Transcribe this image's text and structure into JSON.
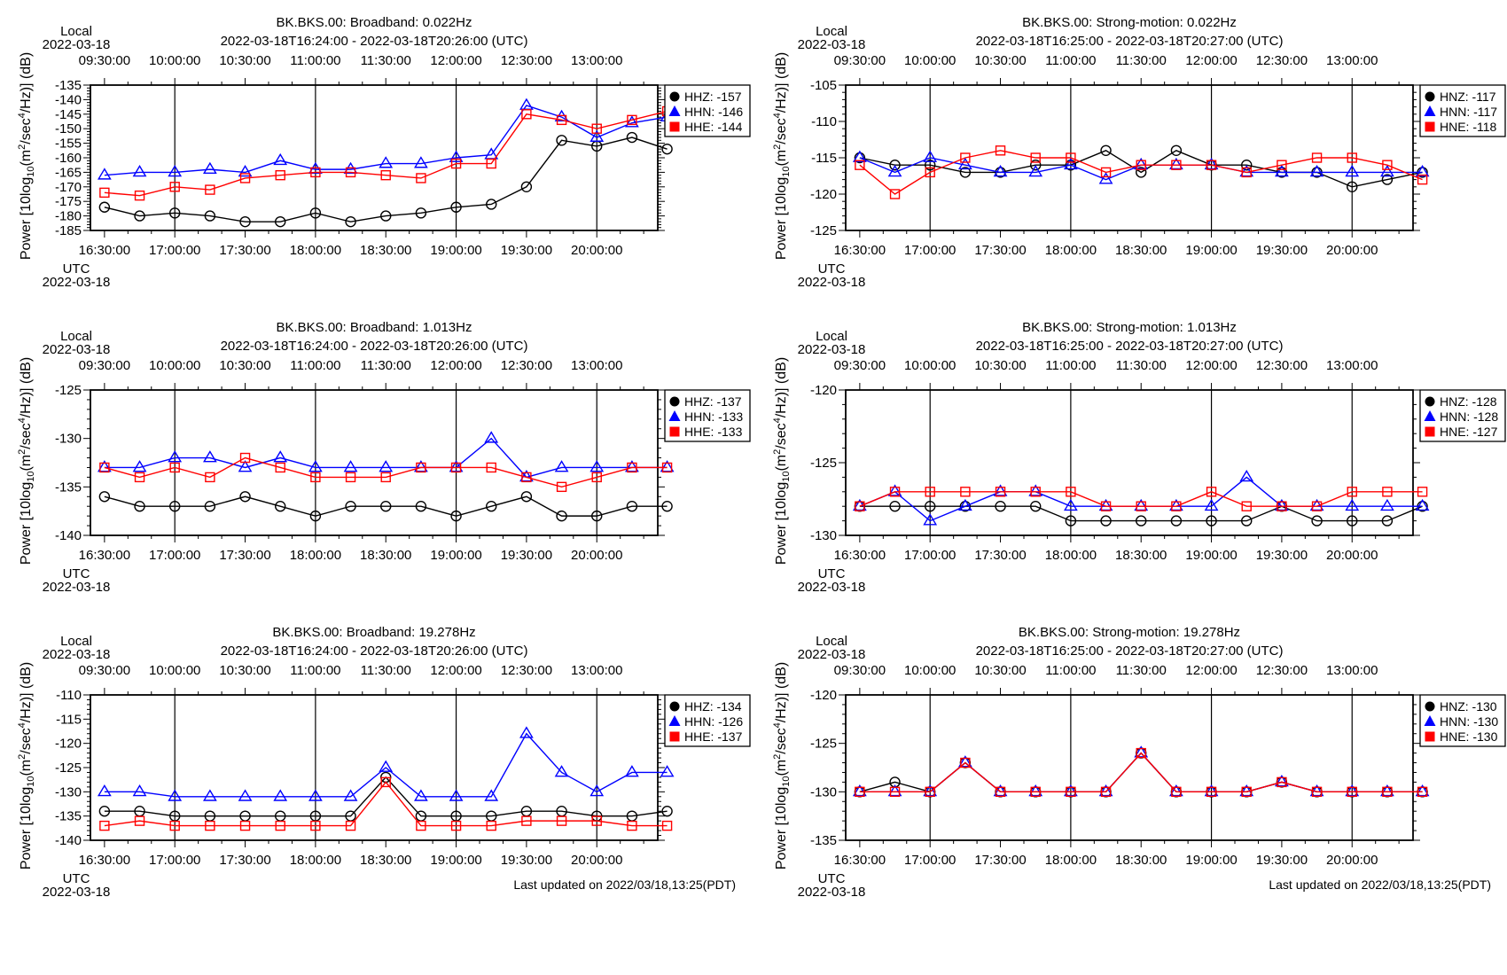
{
  "colors": {
    "z": "#000000",
    "n": "#0000ff",
    "e": "#ff0000"
  },
  "time_axis": {
    "local_label": "Local",
    "utc_label": "UTC",
    "date": "2022-03-18",
    "local_ticks": [
      "09:30:00",
      "10:00:00",
      "10:30:00",
      "11:00:00",
      "11:30:00",
      "12:00:00",
      "12:30:00",
      "13:00:00"
    ],
    "utc_ticks": [
      "16:30:00",
      "17:00:00",
      "17:30:00",
      "18:00:00",
      "18:30:00",
      "19:00:00",
      "19:30:00",
      "20:00:00"
    ]
  },
  "ylabel": {
    "prefix": "Power [10log",
    "sub10": "10",
    "mid": "(m",
    "sup2": "2",
    "mid2": "/sec",
    "sup4": "4",
    "suffix": "/Hz)] (dB)"
  },
  "footer": {
    "last_updated": "Last updated on 2022/03/18,13:25(PDT)"
  },
  "chart_data": [
    {
      "type": "line",
      "title": "BK.BKS.00: Broadband: 0.022Hz",
      "subtitle": "2022-03-18T16:24:00 - 2022-03-18T20:26:00 (UTC)",
      "x_time_utc": [
        "16:30",
        "16:45",
        "17:00",
        "17:15",
        "17:30",
        "17:45",
        "18:00",
        "18:15",
        "18:30",
        "18:45",
        "19:00",
        "19:15",
        "19:30",
        "19:45",
        "20:00",
        "20:15",
        "20:30"
      ],
      "ylim": [
        -185,
        -135
      ],
      "yticks": [
        -185,
        -180,
        -175,
        -170,
        -165,
        -160,
        -155,
        -150,
        -145,
        -140,
        -135
      ],
      "series": [
        {
          "name": "HHZ",
          "legend": "HHZ: -157",
          "marker": "circle",
          "values": [
            -177,
            -180,
            -179,
            -180,
            -182,
            -182,
            -179,
            -182,
            -180,
            -179,
            -177,
            -176,
            -170,
            -154,
            -156,
            -153,
            -157
          ]
        },
        {
          "name": "HHN",
          "legend": "HHN: -146",
          "marker": "triangle",
          "values": [
            -166,
            -165,
            -165,
            -164,
            -165,
            -161,
            -164,
            -164,
            -162,
            -162,
            -160,
            -159,
            -142,
            -146,
            -153,
            -148,
            -146
          ]
        },
        {
          "name": "HHE",
          "legend": "HHE: -144",
          "marker": "square",
          "values": [
            -172,
            -173,
            -170,
            -171,
            -167,
            -166,
            -165,
            -165,
            -166,
            -167,
            -162,
            -162,
            -145,
            -147,
            -150,
            -147,
            -144
          ]
        }
      ]
    },
    {
      "type": "line",
      "title": "BK.BKS.00: Strong-motion: 0.022Hz",
      "subtitle": "2022-03-18T16:25:00 - 2022-03-18T20:27:00 (UTC)",
      "x_time_utc": [
        "16:30",
        "16:45",
        "17:00",
        "17:15",
        "17:30",
        "17:45",
        "18:00",
        "18:15",
        "18:30",
        "18:45",
        "19:00",
        "19:15",
        "19:30",
        "19:45",
        "20:00",
        "20:15",
        "20:30"
      ],
      "ylim": [
        -125,
        -105
      ],
      "yticks": [
        -125,
        -120,
        -115,
        -110,
        -105
      ],
      "series": [
        {
          "name": "HNZ",
          "legend": "HNZ: -117",
          "marker": "circle",
          "values": [
            -115,
            -116,
            -116,
            -117,
            -117,
            -116,
            -116,
            -114,
            -117,
            -114,
            -116,
            -116,
            -117,
            -117,
            -119,
            -118,
            -117
          ]
        },
        {
          "name": "HNN",
          "legend": "HNN: -117",
          "marker": "triangle",
          "values": [
            -115,
            -117,
            -115,
            -116,
            -117,
            -117,
            -116,
            -118,
            -116,
            -116,
            -116,
            -117,
            -117,
            -117,
            -117,
            -117,
            -117
          ]
        },
        {
          "name": "HNE",
          "legend": "HNE: -118",
          "marker": "square",
          "values": [
            -116,
            -120,
            -117,
            -115,
            -114,
            -115,
            -115,
            -117,
            -116,
            -116,
            -116,
            -117,
            -116,
            -115,
            -115,
            -116,
            -118
          ]
        }
      ]
    },
    {
      "type": "line",
      "title": "BK.BKS.00: Broadband: 1.013Hz",
      "subtitle": "2022-03-18T16:24:00 - 2022-03-18T20:26:00 (UTC)",
      "x_time_utc": [
        "16:30",
        "16:45",
        "17:00",
        "17:15",
        "17:30",
        "17:45",
        "18:00",
        "18:15",
        "18:30",
        "18:45",
        "19:00",
        "19:15",
        "19:30",
        "19:45",
        "20:00",
        "20:15",
        "20:30"
      ],
      "ylim": [
        -140,
        -125
      ],
      "yticks": [
        -140,
        -135,
        -130,
        -125
      ],
      "series": [
        {
          "name": "HHZ",
          "legend": "HHZ: -137",
          "marker": "circle",
          "values": [
            -136,
            -137,
            -137,
            -137,
            -136,
            -137,
            -138,
            -137,
            -137,
            -137,
            -138,
            -137,
            -136,
            -138,
            -138,
            -137,
            -137
          ]
        },
        {
          "name": "HHN",
          "legend": "HHN: -133",
          "marker": "triangle",
          "values": [
            -133,
            -133,
            -132,
            -132,
            -133,
            -132,
            -133,
            -133,
            -133,
            -133,
            -133,
            -130,
            -134,
            -133,
            -133,
            -133,
            -133
          ]
        },
        {
          "name": "HHE",
          "legend": "HHE: -133",
          "marker": "square",
          "values": [
            -133,
            -134,
            -133,
            -134,
            -132,
            -133,
            -134,
            -134,
            -134,
            -133,
            -133,
            -133,
            -134,
            -135,
            -134,
            -133,
            -133
          ]
        }
      ]
    },
    {
      "type": "line",
      "title": "BK.BKS.00: Strong-motion: 1.013Hz",
      "subtitle": "2022-03-18T16:25:00 - 2022-03-18T20:27:00 (UTC)",
      "x_time_utc": [
        "16:30",
        "16:45",
        "17:00",
        "17:15",
        "17:30",
        "17:45",
        "18:00",
        "18:15",
        "18:30",
        "18:45",
        "19:00",
        "19:15",
        "19:30",
        "19:45",
        "20:00",
        "20:15",
        "20:30"
      ],
      "ylim": [
        -130,
        -120
      ],
      "yticks": [
        -130,
        -125,
        -120
      ],
      "series": [
        {
          "name": "HNZ",
          "legend": "HNZ: -128",
          "marker": "circle",
          "values": [
            -128,
            -128,
            -128,
            -128,
            -128,
            -128,
            -129,
            -129,
            -129,
            -129,
            -129,
            -129,
            -128,
            -129,
            -129,
            -129,
            -128
          ]
        },
        {
          "name": "HNN",
          "legend": "HNN: -128",
          "marker": "triangle",
          "values": [
            -128,
            -127,
            -129,
            -128,
            -127,
            -127,
            -128,
            -128,
            -128,
            -128,
            -128,
            -126,
            -128,
            -128,
            -128,
            -128,
            -128
          ]
        },
        {
          "name": "HNE",
          "legend": "HNE: -127",
          "marker": "square",
          "values": [
            -128,
            -127,
            -127,
            -127,
            -127,
            -127,
            -127,
            -128,
            -128,
            -128,
            -127,
            -128,
            -128,
            -128,
            -127,
            -127,
            -127
          ]
        }
      ]
    },
    {
      "type": "line",
      "title": "BK.BKS.00: Broadband: 19.278Hz",
      "subtitle": "2022-03-18T16:24:00 - 2022-03-18T20:26:00 (UTC)",
      "x_time_utc": [
        "16:30",
        "16:45",
        "17:00",
        "17:15",
        "17:30",
        "17:45",
        "18:00",
        "18:15",
        "18:30",
        "18:45",
        "19:00",
        "19:15",
        "19:30",
        "19:45",
        "20:00",
        "20:15",
        "20:30"
      ],
      "ylim": [
        -140,
        -110
      ],
      "yticks": [
        -140,
        -135,
        -130,
        -125,
        -120,
        -115,
        -110
      ],
      "series": [
        {
          "name": "HHZ",
          "legend": "HHZ: -134",
          "marker": "circle",
          "values": [
            -134,
            -134,
            -135,
            -135,
            -135,
            -135,
            -135,
            -135,
            -127,
            -135,
            -135,
            -135,
            -134,
            -134,
            -135,
            -135,
            -134
          ]
        },
        {
          "name": "HHN",
          "legend": "HHN: -126",
          "marker": "triangle",
          "values": [
            -130,
            -130,
            -131,
            -131,
            -131,
            -131,
            -131,
            -131,
            -125,
            -131,
            -131,
            -131,
            -118,
            -126,
            -130,
            -126,
            -126
          ]
        },
        {
          "name": "HHE",
          "legend": "HHE: -137",
          "marker": "square",
          "values": [
            -137,
            -136,
            -137,
            -137,
            -137,
            -137,
            -137,
            -137,
            -128,
            -137,
            -137,
            -137,
            -136,
            -136,
            -136,
            -137,
            -137
          ]
        }
      ]
    },
    {
      "type": "line",
      "title": "BK.BKS.00: Strong-motion: 19.278Hz",
      "subtitle": "2022-03-18T16:25:00 - 2022-03-18T20:27:00 (UTC)",
      "x_time_utc": [
        "16:30",
        "16:45",
        "17:00",
        "17:15",
        "17:30",
        "17:45",
        "18:00",
        "18:15",
        "18:30",
        "18:45",
        "19:00",
        "19:15",
        "19:30",
        "19:45",
        "20:00",
        "20:15",
        "20:30"
      ],
      "ylim": [
        -135,
        -120
      ],
      "yticks": [
        -135,
        -130,
        -125,
        -120
      ],
      "series": [
        {
          "name": "HNZ",
          "legend": "HNZ: -130",
          "marker": "circle",
          "values": [
            -130,
            -129,
            -130,
            -127,
            -130,
            -130,
            -130,
            -130,
            -126,
            -130,
            -130,
            -130,
            -129,
            -130,
            -130,
            -130,
            -130
          ]
        },
        {
          "name": "HNN",
          "legend": "HNN: -130",
          "marker": "triangle",
          "values": [
            -130,
            -130,
            -130,
            -127,
            -130,
            -130,
            -130,
            -130,
            -126,
            -130,
            -130,
            -130,
            -129,
            -130,
            -130,
            -130,
            -130
          ]
        },
        {
          "name": "HNE",
          "legend": "HNE: -130",
          "marker": "square",
          "values": [
            -130,
            -130,
            -130,
            -127,
            -130,
            -130,
            -130,
            -130,
            -126,
            -130,
            -130,
            -130,
            -129,
            -130,
            -130,
            -130,
            -130
          ]
        }
      ]
    }
  ]
}
